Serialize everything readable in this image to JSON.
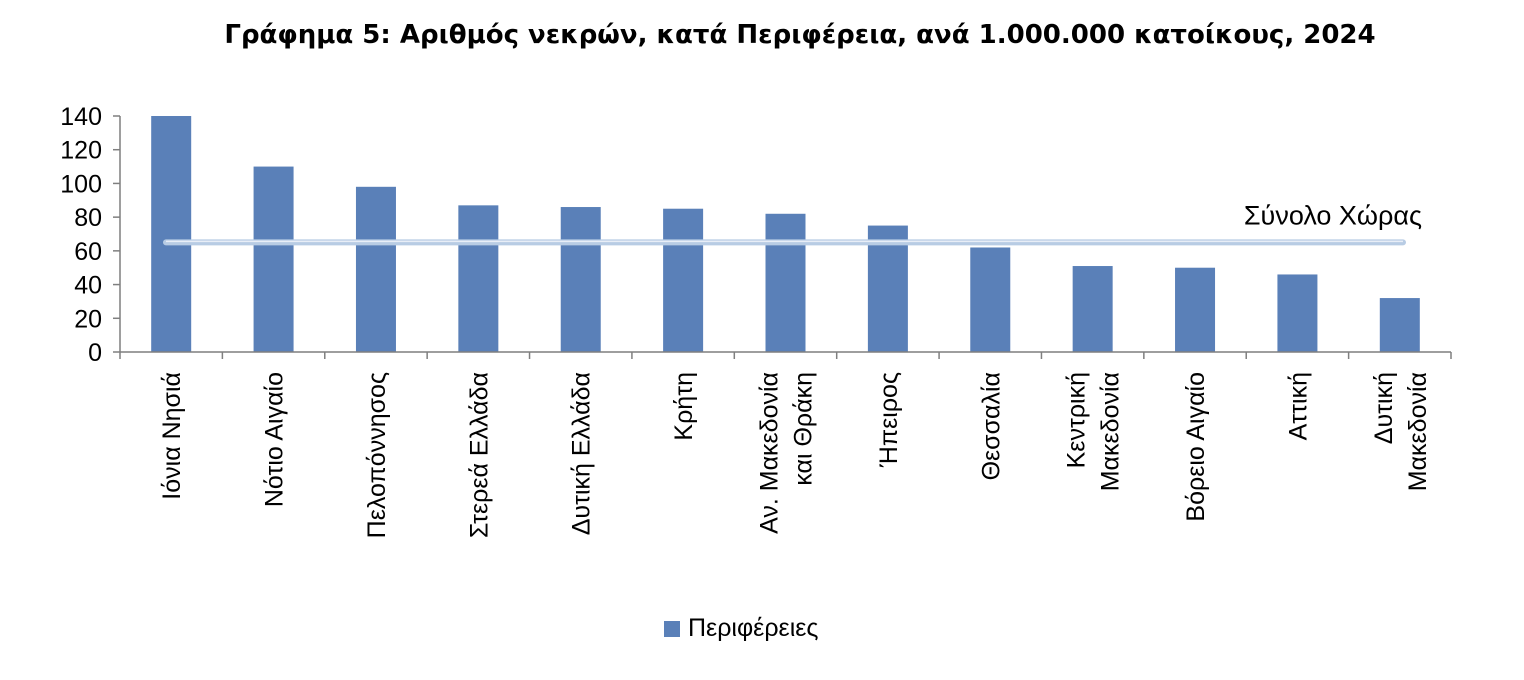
{
  "chart_data": {
    "type": "bar",
    "title": "Γράφημα 5: Αριθμός νεκρών, κατά Περιφέρεια, ανά 1.000.000 κατοίκους, 2024",
    "xlabel": "",
    "ylabel": "",
    "ylim": [
      0,
      140
    ],
    "yticks": [
      0,
      20,
      40,
      60,
      80,
      100,
      120,
      140
    ],
    "categories": [
      [
        "Ιόνια Νησιά"
      ],
      [
        "Νότιο Αιγαίο"
      ],
      [
        "Πελοπόννησος"
      ],
      [
        "Στερεά Ελλάδα"
      ],
      [
        "Δυτική Ελλάδα"
      ],
      [
        "Κρήτη"
      ],
      [
        "Αν. Μακεδονία",
        "και Θράκη"
      ],
      [
        "Ήπειρος"
      ],
      [
        "Θεσσαλία"
      ],
      [
        "Κεντρική",
        "Μακεδονία"
      ],
      [
        "Βόρειο Αιγαίο"
      ],
      [
        "Αττική"
      ],
      [
        "Δυτική",
        "Μακεδονία"
      ]
    ],
    "series": [
      {
        "name": "Περιφέρειες",
        "values": [
          140,
          110,
          98,
          87,
          86,
          85,
          82,
          75,
          62,
          51,
          50,
          46,
          32
        ]
      }
    ],
    "reference_line": {
      "label": "Σύνολο Χώρας",
      "value": 65
    },
    "bar_color": "#5a80b8",
    "reference_color": "#b8cce4",
    "grid": false,
    "legend_position": "bottom"
  }
}
